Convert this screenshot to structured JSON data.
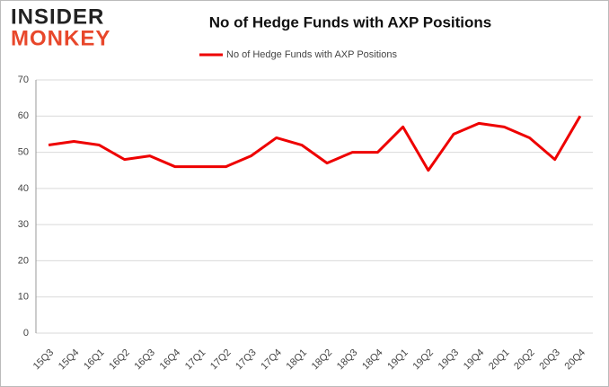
{
  "logo": {
    "line1": "INSIDER",
    "line2": "MONKEY"
  },
  "chart_data": {
    "type": "line",
    "title": "No of Hedge Funds with AXP Positions",
    "categories": [
      "15Q3",
      "15Q4",
      "16Q1",
      "16Q2",
      "16Q3",
      "16Q4",
      "17Q1",
      "17Q2",
      "17Q3",
      "17Q4",
      "18Q1",
      "18Q2",
      "18Q3",
      "18Q4",
      "19Q1",
      "19Q2",
      "19Q3",
      "19Q4",
      "20Q1",
      "20Q2",
      "20Q3",
      "20Q4"
    ],
    "series": [
      {
        "name": "No of Hedge Funds with AXP Positions",
        "color": "#ee0000",
        "values": [
          52,
          53,
          52,
          48,
          49,
          46,
          46,
          46,
          49,
          54,
          52,
          47,
          50,
          50,
          57,
          45,
          55,
          58,
          57,
          54,
          48,
          60
        ]
      }
    ],
    "ylim": [
      0,
      70
    ],
    "yticks": [
      0,
      10,
      20,
      30,
      40,
      50,
      60,
      70
    ],
    "grid": true,
    "legend": "top"
  }
}
